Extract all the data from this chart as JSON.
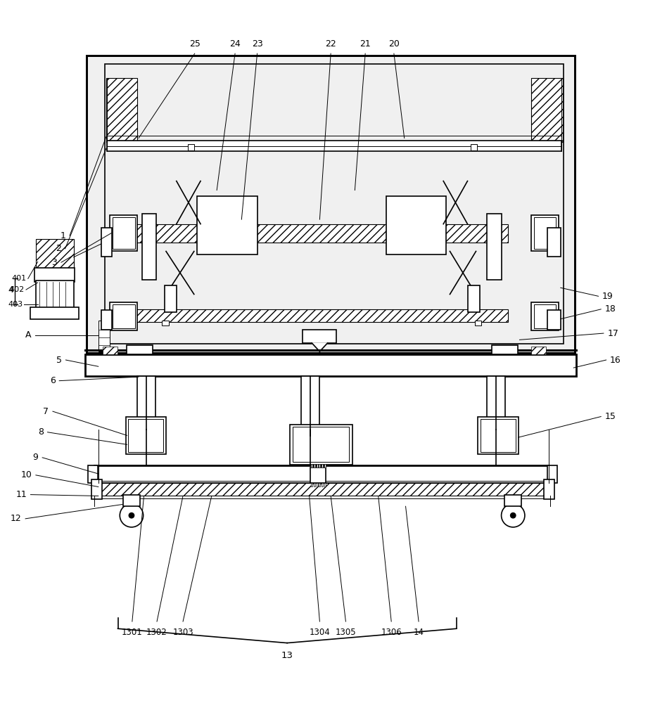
{
  "figure_width": 9.31,
  "figure_height": 10.0,
  "dpi": 100,
  "bg_color": "#ffffff",
  "line_color": "#000000"
}
